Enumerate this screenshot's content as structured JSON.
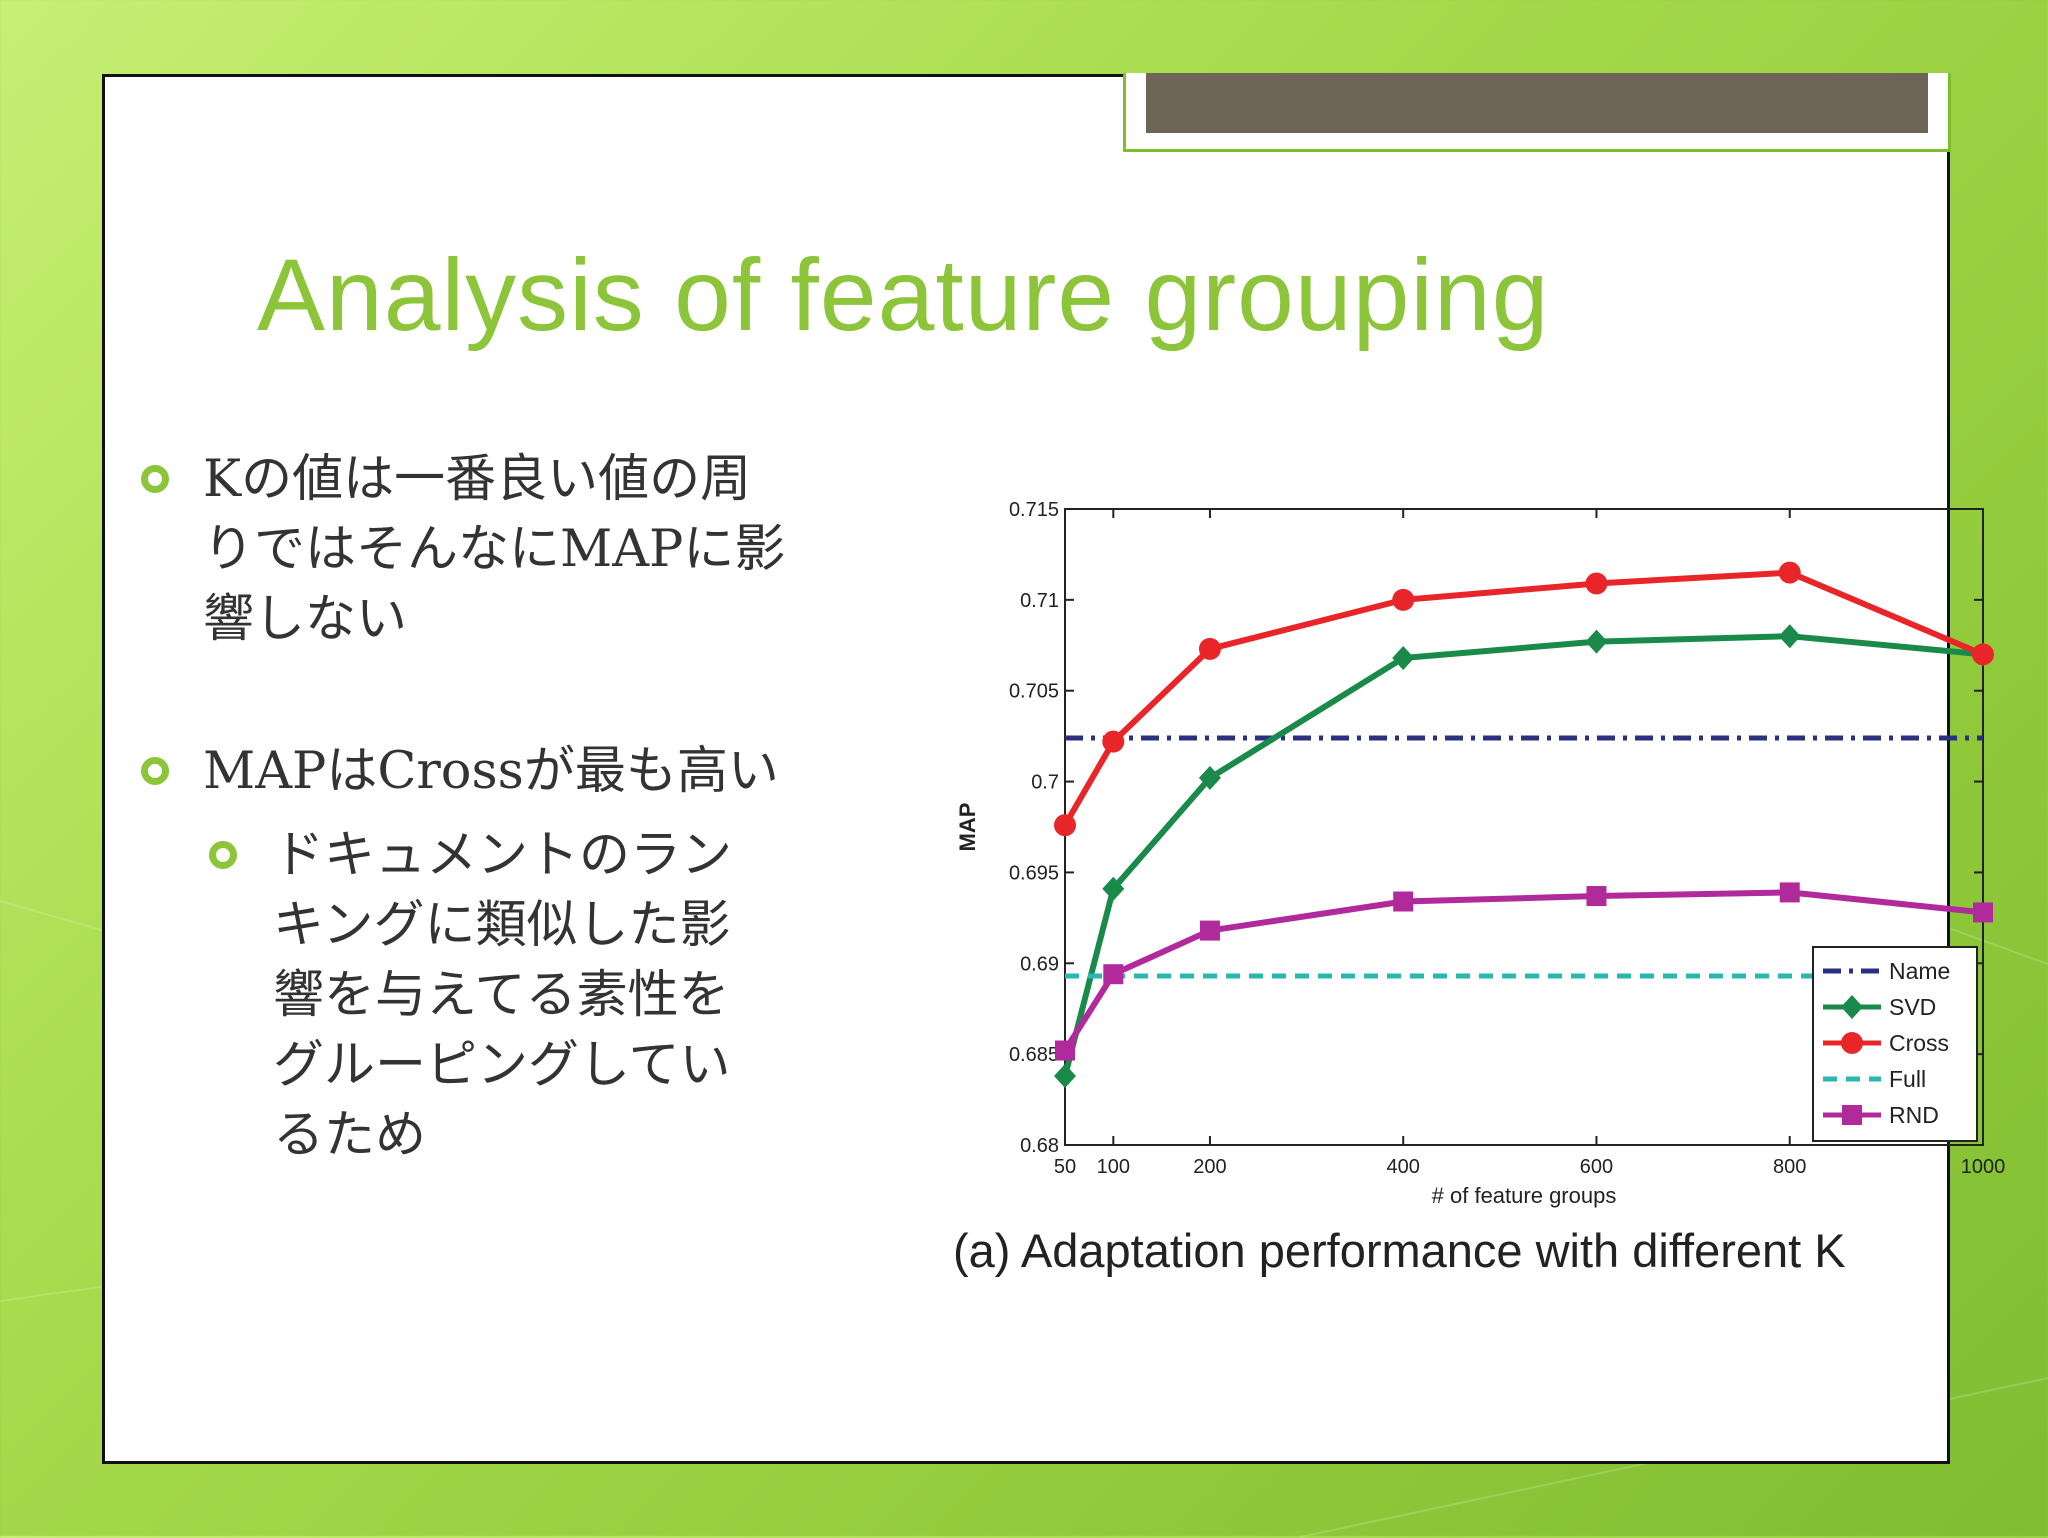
{
  "slide": {
    "title": "Analysis of feature grouping",
    "bullets": [
      {
        "level": 1,
        "text": "Kの値は一番良い値の周りではそんなにMAPに影響しない"
      },
      {
        "level": 1,
        "text": "MAPはCrossが最も高い"
      },
      {
        "level": 2,
        "text": "ドキュメントのランキングに類似した影響を与えてる素性をグルーピングしているため"
      }
    ],
    "colors": {
      "accent": "#8cc43a",
      "tab": "#6e6457"
    }
  },
  "chart_data": {
    "type": "line",
    "caption": "(a) Adaptation performance with different K",
    "xlabel": "# of feature groups",
    "ylabel": "MAP",
    "x": [
      50,
      100,
      200,
      400,
      600,
      800,
      1000
    ],
    "xticks": [
      "50",
      "100",
      "200",
      "400",
      "600",
      "800",
      "1000"
    ],
    "xlim": [
      50,
      1000
    ],
    "ylim": [
      0.68,
      0.715
    ],
    "yticks": [
      "0.68",
      "0.685",
      "0.69",
      "0.695",
      "0.7",
      "0.705",
      "0.71",
      "0.715"
    ],
    "grid": false,
    "legend_position": "bottom-right",
    "series": [
      {
        "name": "Name",
        "type": "hline",
        "value": 0.7024,
        "color": "#2a2f80",
        "dash": "dashdot"
      },
      {
        "name": "SVD",
        "values": [
          0.6838,
          0.6941,
          0.7002,
          0.7068,
          0.7077,
          0.708,
          0.707
        ],
        "color": "#1a8a4a",
        "marker": "diamond"
      },
      {
        "name": "Cross",
        "values": [
          0.6976,
          0.7022,
          0.7073,
          0.71,
          0.7109,
          0.7115,
          0.707
        ],
        "color": "#e8262a",
        "marker": "circle"
      },
      {
        "name": "Full",
        "type": "hline",
        "value": 0.6893,
        "color": "#2ab7b0",
        "dash": "dashed"
      },
      {
        "name": "RND",
        "values": [
          0.6852,
          0.6894,
          0.6918,
          0.6934,
          0.6937,
          0.6939,
          0.6928
        ],
        "color": "#b02a9c",
        "marker": "square"
      }
    ]
  }
}
